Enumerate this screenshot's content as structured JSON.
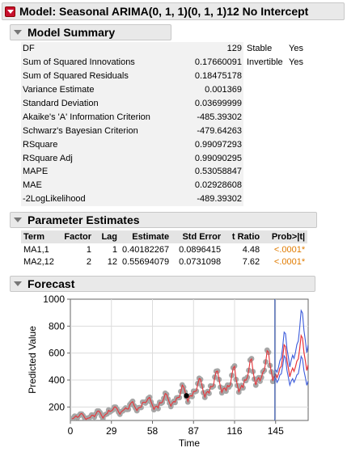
{
  "model_header": {
    "title": "Model: Seasonal ARIMA(0, 1, 1)(0, 1, 1)12 No Intercept"
  },
  "summary": {
    "title": "Model Summary",
    "rows": [
      {
        "label": "DF",
        "value": "129"
      },
      {
        "label": "Sum of Squared Innovations",
        "value": "0.17660091"
      },
      {
        "label": "Sum of Squared Residuals",
        "value": "0.18475178"
      },
      {
        "label": "Variance Estimate",
        "value": "0.001369"
      },
      {
        "label": "Standard Deviation",
        "value": "0.03699999"
      },
      {
        "label": "Akaike's 'A' Information Criterion",
        "value": "-485.39302"
      },
      {
        "label": "Schwarz's Bayesian Criterion",
        "value": "-479.64263"
      },
      {
        "label": "RSquare",
        "value": "0.99097293"
      },
      {
        "label": "RSquare Adj",
        "value": "0.99090295"
      },
      {
        "label": "MAPE",
        "value": "0.53058847"
      },
      {
        "label": "MAE",
        "value": "0.02928608"
      },
      {
        "label": "-2LogLikelihood",
        "value": "-489.39302"
      }
    ],
    "flags": [
      {
        "label": "Stable",
        "value": "Yes"
      },
      {
        "label": "Invertible",
        "value": "Yes"
      }
    ]
  },
  "params": {
    "title": "Parameter Estimates",
    "headers": [
      "Term",
      "Factor",
      "Lag",
      "Estimate",
      "Std Error",
      "t Ratio",
      "Prob>|t|"
    ],
    "rows": [
      [
        "MA1,1",
        "1",
        "1",
        "0.40182267",
        "0.0896415",
        "4.48",
        "<.0001*"
      ],
      [
        "MA2,12",
        "2",
        "12",
        "0.55694079",
        "0.0731098",
        "7.62",
        "<.0001*"
      ]
    ]
  },
  "forecast": {
    "title": "Forecast"
  },
  "chart_data": {
    "type": "line",
    "xlabel": "Time",
    "ylabel": "Predicted Value",
    "xlim": [
      0,
      168
    ],
    "ylim": [
      100,
      1000
    ],
    "xticks": [
      0,
      29,
      58,
      87,
      116,
      145
    ],
    "yticks": [
      200,
      400,
      600,
      800,
      1000
    ],
    "forecast_start": 144,
    "actual_color": "#a6a6a6",
    "predicted_color": "#e8343a",
    "limits_color": "#3b5bdb",
    "highlight_point": {
      "x": 82,
      "y": 284
    },
    "series": [
      {
        "name": "Actual",
        "values": [
          112,
          118,
          132,
          129,
          121,
          135,
          148,
          148,
          136,
          119,
          104,
          118,
          115,
          126,
          141,
          135,
          125,
          149,
          170,
          170,
          158,
          133,
          114,
          140,
          145,
          150,
          178,
          163,
          172,
          178,
          199,
          199,
          184,
          162,
          146,
          166,
          171,
          180,
          193,
          181,
          183,
          218,
          230,
          242,
          209,
          191,
          172,
          194,
          196,
          196,
          236,
          235,
          229,
          243,
          264,
          272,
          237,
          211,
          180,
          201,
          204,
          188,
          235,
          227,
          234,
          264,
          302,
          293,
          259,
          229,
          203,
          229,
          242,
          233,
          267,
          269,
          270,
          315,
          364,
          347,
          312,
          274,
          237,
          278,
          284,
          277,
          317,
          313,
          318,
          374,
          413,
          405,
          355,
          306,
          271,
          306,
          315,
          301,
          356,
          348,
          355,
          422,
          465,
          467,
          404,
          347,
          305,
          336,
          340,
          318,
          362,
          348,
          363,
          435,
          491,
          505,
          404,
          359,
          310,
          337,
          360,
          342,
          406,
          396,
          420,
          472,
          548,
          559,
          463,
          407,
          362,
          405,
          417,
          391,
          419,
          461,
          472,
          535,
          622,
          606,
          508,
          461,
          390,
          432
        ]
      },
      {
        "name": "Predicted",
        "values": [
          112,
          115,
          125,
          134,
          123,
          129,
          147,
          152,
          140,
          122,
          107,
          116,
          118,
          122,
          138,
          139,
          128,
          146,
          168,
          171,
          159,
          137,
          118,
          135,
          146,
          151,
          175,
          167,
          170,
          181,
          200,
          200,
          186,
          164,
          147,
          165,
          173,
          181,
          194,
          185,
          185,
          215,
          232,
          240,
          211,
          192,
          174,
          193,
          198,
          199,
          233,
          236,
          231,
          244,
          265,
          271,
          239,
          213,
          183,
          202,
          206,
          193,
          233,
          229,
          236,
          263,
          300,
          294,
          261,
          231,
          206,
          229,
          241,
          236,
          266,
          270,
          273,
          313,
          362,
          349,
          314,
          277,
          241,
          276,
          285,
          280,
          315,
          315,
          320,
          371,
          411,
          406,
          358,
          309,
          274,
          305,
          316,
          304,
          353,
          350,
          357,
          419,
          463,
          466,
          406,
          350,
          308,
          335,
          341,
          322,
          360,
          351,
          365,
          432,
          489,
          502,
          408,
          361,
          313,
          337,
          360,
          345,
          402,
          398,
          419,
          470,
          545,
          556,
          466,
          409,
          364,
          403,
          418,
          395,
          421,
          458,
          473,
          532,
          618,
          607,
          511,
          462,
          394,
          430
        ]
      },
      {
        "name": "Forecast",
        "values": [
          444,
          418,
          446,
          488,
          502,
          571,
          661,
          647,
          546,
          490,
          424,
          462,
          489,
          464,
          498,
          540,
          557,
          631,
          730,
          711,
          604,
          543,
          470,
          514
        ]
      },
      {
        "name": "Upper Limit",
        "values": [
          476,
          458,
          494,
          543,
          565,
          646,
          755,
          744,
          632,
          571,
          497,
          545,
          584,
          560,
          605,
          663,
          690,
          787,
          916,
          897,
          768,
          693,
          603,
          663
        ]
      },
      {
        "name": "Lower Limit",
        "values": [
          414,
          382,
          402,
          438,
          446,
          504,
          580,
          562,
          471,
          420,
          362,
          392,
          410,
          383,
          408,
          438,
          447,
          502,
          576,
          556,
          468,
          420,
          361,
          394
        ]
      }
    ]
  }
}
